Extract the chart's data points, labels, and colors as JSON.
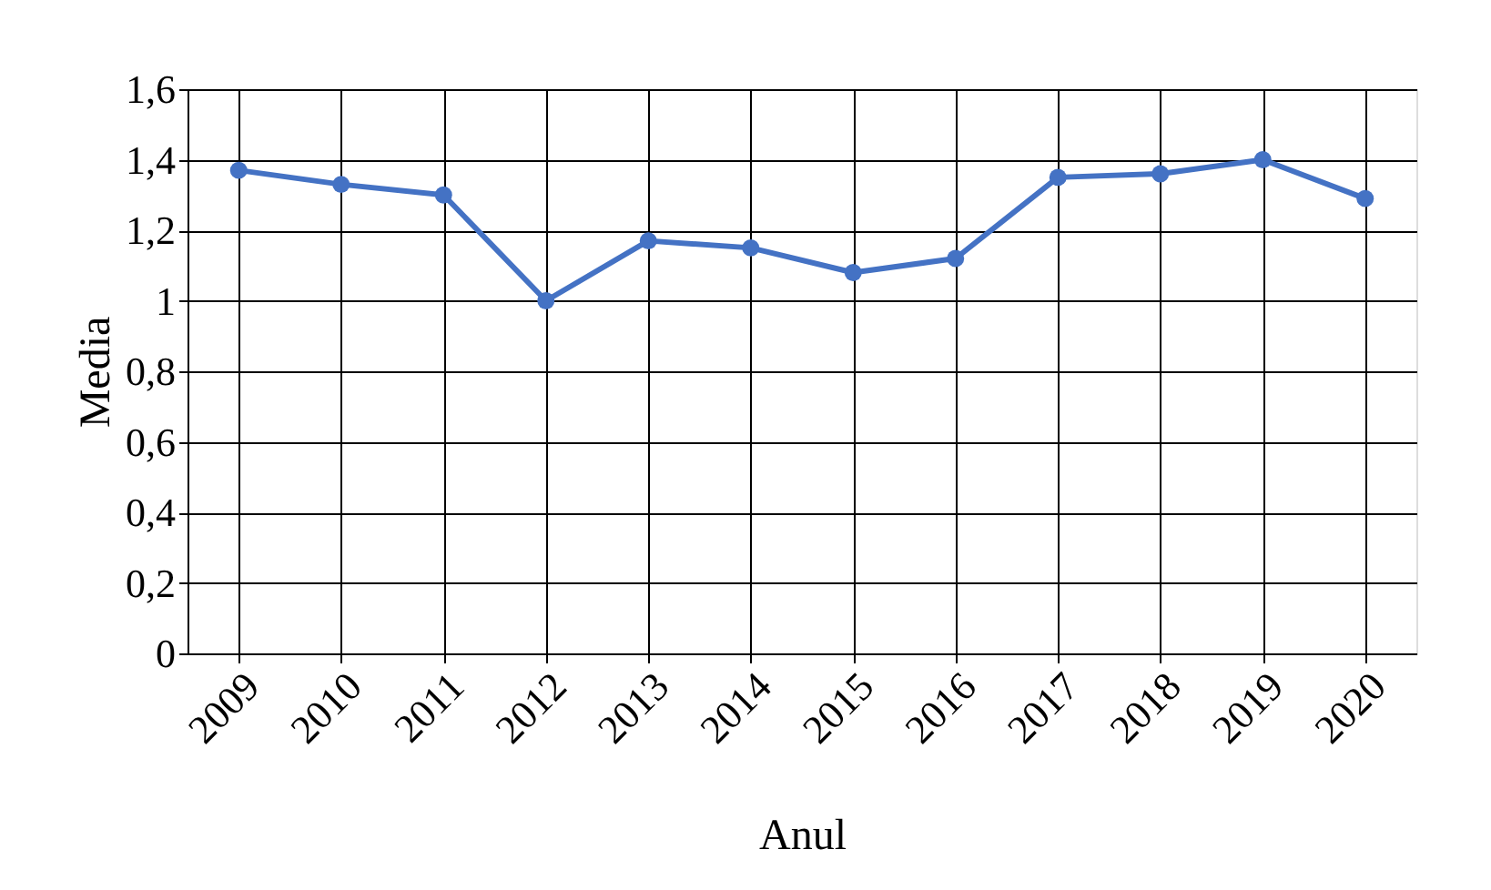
{
  "chart_data": {
    "type": "line",
    "xlabel": "Anul",
    "ylabel": "Media",
    "categories": [
      "2009",
      "2010",
      "2011",
      "2012",
      "2013",
      "2014",
      "2015",
      "2016",
      "2017",
      "2018",
      "2019",
      "2020"
    ],
    "series": [
      {
        "color": "#4472c4",
        "values": [
          1.37,
          1.33,
          1.3,
          1.0,
          1.17,
          1.15,
          1.08,
          1.12,
          1.35,
          1.36,
          1.4,
          1.29
        ]
      }
    ],
    "ylim": [
      0,
      1.6
    ],
    "yticks": [
      0,
      {
        "value": 0.2,
        "label": "0,2"
      },
      {
        "value": 0.4,
        "label": "0,4"
      },
      {
        "value": 0.6,
        "label": "0,6"
      },
      {
        "value": 0.8,
        "label": "0,8"
      },
      1,
      {
        "value": 1.2,
        "label": "1,2"
      },
      {
        "value": 1.4,
        "label": "1,4"
      },
      {
        "value": 1.6,
        "label": "1,6"
      }
    ],
    "grid": true,
    "marker": "circle",
    "line_style": "solid"
  }
}
